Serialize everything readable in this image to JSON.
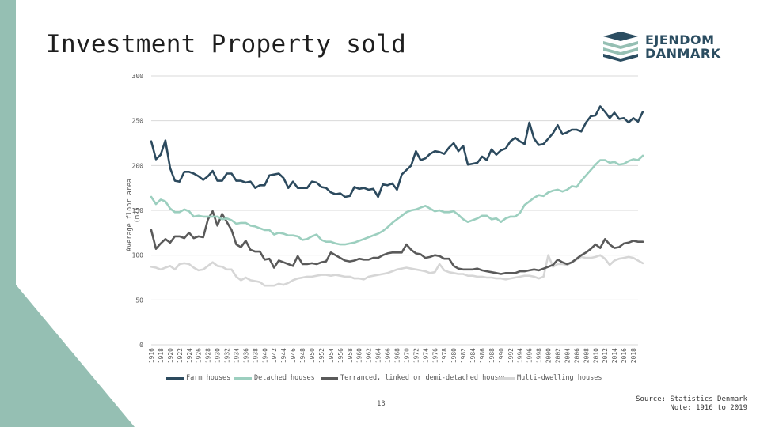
{
  "slide": {
    "title": "Investment Property sold",
    "page_number": "13",
    "source_line1": "Source: Statistics Denmark",
    "source_line2": "Note: 1916 to 2019",
    "logo_line1": "EJENDOM",
    "logo_line2": "DANMARK"
  },
  "chart_data": {
    "type": "line",
    "title": "",
    "xlabel": "",
    "ylabel": "Average floor area (m2)",
    "ylim": [
      0,
      300
    ],
    "yticks": [
      0,
      50,
      100,
      150,
      200,
      250,
      300
    ],
    "x_start": 1916,
    "x_end": 2019,
    "x_tick_labels": [
      "1916",
      "1918",
      "1920",
      "1922",
      "1924",
      "1926",
      "1928",
      "1930",
      "1932",
      "1934",
      "1936",
      "1938",
      "1940",
      "1942",
      "1944",
      "1946",
      "1948",
      "1950",
      "1952",
      "1954",
      "1956",
      "1958",
      "1960",
      "1962",
      "1964",
      "1966",
      "1968",
      "1970",
      "1972",
      "1974",
      "1976",
      "1978",
      "1980",
      "1982",
      "1984",
      "1986",
      "1988",
      "1990",
      "1992",
      "1994",
      "1996",
      "1998",
      "2000",
      "2002",
      "2004",
      "2006",
      "2008",
      "2010",
      "2012",
      "2014",
      "2016",
      "2018"
    ],
    "legend": [
      "Farm houses",
      "Detached houses",
      "Terranced, linked or demi-detached houses",
      "Multi-dwelling houses"
    ],
    "series": [
      {
        "name": "Farm houses",
        "color": "#2c4a5e",
        "values": [
          227,
          207,
          212,
          228,
          197,
          183,
          182,
          193,
          193,
          191,
          188,
          184,
          188,
          194,
          183,
          183,
          191,
          191,
          183,
          183,
          181,
          182,
          175,
          178,
          178,
          189,
          190,
          191,
          186,
          175,
          182,
          175,
          175,
          175,
          182,
          181,
          176,
          175,
          170,
          168,
          169,
          165,
          166,
          176,
          174,
          175,
          173,
          174,
          165,
          179,
          178,
          180,
          173,
          190,
          195,
          200,
          216,
          206,
          208,
          213,
          216,
          215,
          213,
          220,
          225,
          216,
          222,
          201,
          202,
          203,
          210,
          206,
          218,
          212,
          217,
          219,
          227,
          231,
          227,
          224,
          248,
          230,
          223,
          224,
          230,
          236,
          245,
          235,
          237,
          240,
          240,
          238,
          248,
          255,
          256,
          266,
          260,
          253,
          259,
          252,
          253,
          248,
          253,
          249,
          260
        ]
      },
      {
        "name": "Detached houses",
        "color": "#9ccfbf",
        "values": [
          165,
          157,
          162,
          160,
          152,
          148,
          148,
          151,
          149,
          143,
          144,
          143,
          143,
          143,
          143,
          140,
          141,
          139,
          135,
          136,
          136,
          133,
          132,
          130,
          128,
          128,
          123,
          125,
          124,
          122,
          122,
          121,
          117,
          118,
          121,
          123,
          117,
          115,
          115,
          113,
          112,
          112,
          113,
          114,
          116,
          118,
          120,
          122,
          124,
          127,
          131,
          136,
          140,
          144,
          148,
          150,
          151,
          153,
          155,
          152,
          149,
          150,
          148,
          148,
          149,
          145,
          140,
          137,
          139,
          141,
          144,
          144,
          140,
          141,
          137,
          141,
          143,
          143,
          147,
          156,
          160,
          164,
          167,
          166,
          170,
          172,
          173,
          171,
          173,
          177,
          176,
          183,
          189,
          195,
          201,
          206,
          206,
          203,
          204,
          201,
          202,
          205,
          207,
          206,
          211
        ]
      },
      {
        "name": "Terranced, linked or demi-detached houses",
        "color": "#5a5a5a",
        "values": [
          128,
          107,
          113,
          118,
          114,
          121,
          121,
          119,
          125,
          119,
          121,
          120,
          140,
          149,
          133,
          146,
          137,
          128,
          112,
          109,
          116,
          106,
          104,
          104,
          95,
          96,
          86,
          94,
          92,
          90,
          88,
          99,
          90,
          90,
          91,
          90,
          92,
          93,
          103,
          100,
          97,
          94,
          93,
          94,
          96,
          95,
          95,
          97,
          97,
          100,
          102,
          103,
          103,
          103,
          112,
          106,
          102,
          101,
          97,
          98,
          100,
          99,
          96,
          96,
          88,
          85,
          84,
          84,
          84,
          85,
          83,
          82,
          81,
          80,
          79,
          80,
          80,
          80,
          82,
          82,
          83,
          84,
          83,
          85,
          87,
          89,
          95,
          92,
          90,
          92,
          96,
          100,
          103,
          107,
          112,
          108,
          118,
          112,
          108,
          109,
          113,
          114,
          116,
          115,
          115
        ]
      },
      {
        "name": "Multi-dwelling houses",
        "color": "#d6d6d6",
        "values": [
          87,
          86,
          84,
          86,
          88,
          84,
          90,
          91,
          90,
          86,
          83,
          84,
          88,
          92,
          88,
          87,
          84,
          84,
          76,
          72,
          75,
          72,
          71,
          70,
          66,
          66,
          66,
          68,
          67,
          69,
          72,
          74,
          75,
          76,
          76,
          77,
          78,
          78,
          77,
          78,
          77,
          76,
          76,
          74,
          74,
          73,
          76,
          77,
          78,
          79,
          80,
          82,
          84,
          85,
          86,
          85,
          84,
          83,
          82,
          80,
          81,
          90,
          83,
          81,
          80,
          79,
          79,
          77,
          77,
          76,
          76,
          75,
          75,
          74,
          74,
          73,
          74,
          75,
          76,
          77,
          77,
          76,
          74,
          76,
          100,
          87,
          90,
          90,
          89,
          92,
          95,
          98,
          97,
          97,
          98,
          100,
          96,
          89,
          94,
          96,
          97,
          98,
          97,
          94,
          91
        ]
      }
    ]
  }
}
